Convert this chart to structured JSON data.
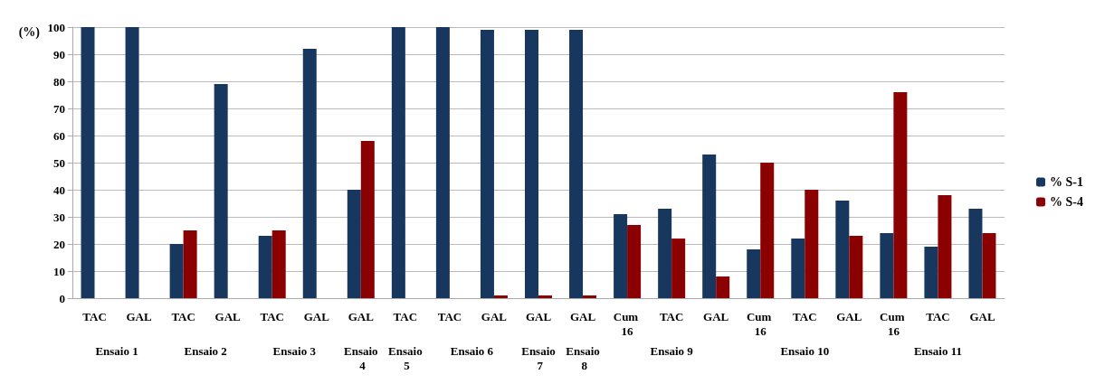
{
  "chart_data": {
    "type": "bar",
    "ylabel": "(%)",
    "categories": [
      "TAC",
      "GAL",
      "TAC",
      "GAL",
      "TAC",
      "GAL",
      "GAL",
      "TAC",
      "TAC",
      "GAL",
      "GAL",
      "GAL",
      "Cum 16",
      "TAC",
      "GAL",
      "Cum 16",
      "TAC",
      "GAL",
      "Cum 16",
      "TAC",
      "GAL"
    ],
    "series": [
      {
        "name": "% S-1",
        "color": "#17375e",
        "values": [
          100,
          100,
          20,
          79,
          23,
          92,
          40,
          100,
          100,
          99,
          99,
          99,
          31,
          33,
          53,
          18,
          22,
          36,
          24,
          19,
          33
        ]
      },
      {
        "name": "% S-4",
        "color": "#8b0000",
        "values": [
          0,
          0,
          25,
          0,
          25,
          0,
          58,
          0,
          0,
          1,
          1,
          1,
          27,
          22,
          8,
          50,
          40,
          23,
          76,
          38,
          24
        ]
      }
    ],
    "annotations": [
      "Ensaio 1",
      "Ensaio 2",
      "Ensaio 3",
      "Ensaio 4",
      "Ensaio 5",
      "Ensaio 6",
      "Ensaio 7",
      "Ensaio 8",
      "Ensaio 9",
      "Ensaio 10",
      "Ensaio 11"
    ],
    "ylim": [
      0,
      100
    ],
    "yticks": [
      0,
      10,
      20,
      30,
      40,
      50,
      60,
      70,
      80,
      90,
      100
    ],
    "grid": "y",
    "legend": "right"
  }
}
